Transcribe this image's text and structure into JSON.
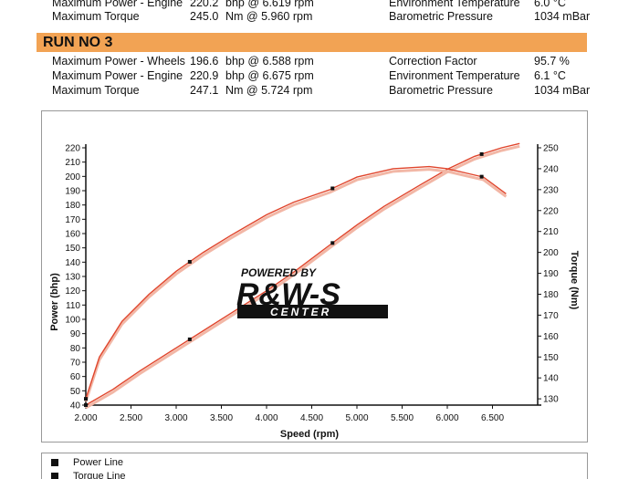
{
  "prev_run": {
    "lines": [
      {
        "label": "Maximum Power - Engine",
        "value": "220.2",
        "unit": "bhp @ 6.619 rpm",
        "env_label": "Environment Temperature",
        "env_value": "6.0 °C"
      },
      {
        "label": "Maximum Torque",
        "value": "245.0",
        "unit": "Nm @ 5.960 rpm",
        "env_label": "Barometric Pressure",
        "env_value": "1034 mBar"
      }
    ]
  },
  "run": {
    "title": "RUN NO 3",
    "lines": [
      {
        "label": "Maximum Power - Wheels",
        "value": "196.6",
        "unit": "bhp @ 6.588 rpm",
        "env_label": "Correction Factor",
        "env_value": "95.7 %"
      },
      {
        "label": "Maximum Power - Engine",
        "value": "220.9",
        "unit": "bhp @ 6.675 rpm",
        "env_label": "Environment Temperature",
        "env_value": "6.1 °C"
      },
      {
        "label": "Maximum Torque",
        "value": "247.1",
        "unit": "Nm @ 5.724 rpm",
        "env_label": "Barometric Pressure",
        "env_value": "1034 mBar"
      }
    ]
  },
  "watermark": {
    "line1": "POWERED BY",
    "line2": "R&W-S",
    "line3": "CENTER"
  },
  "legend": {
    "items": [
      {
        "label": "Power Line"
      },
      {
        "label": "Torque Line"
      }
    ]
  },
  "colors": {
    "curve": "#e0452c",
    "curve_faint": "#f2b7a6",
    "banner": "#f2a354",
    "marker": "#111111"
  },
  "chart_data": {
    "type": "line",
    "xlabel": "Speed (rpm)",
    "ylabel": "Power (bhp)",
    "y2label": "Torque (Nm)",
    "xlim": [
      2000,
      7000
    ],
    "ylim": [
      40,
      220
    ],
    "y2lim": [
      127,
      250
    ],
    "x_ticks": [
      2000,
      2500,
      3000,
      3500,
      4000,
      4500,
      5000,
      5500,
      6000,
      6500
    ],
    "x_tick_labels": [
      "2.000",
      "2.500",
      "3.000",
      "3.500",
      "4.000",
      "4.500",
      "5.000",
      "5.500",
      "6.000",
      "6.500"
    ],
    "y_ticks": [
      40,
      50,
      60,
      70,
      80,
      90,
      100,
      110,
      120,
      130,
      140,
      150,
      160,
      170,
      180,
      190,
      200,
      210,
      220
    ],
    "y2_ticks": [
      130,
      140,
      150,
      160,
      170,
      180,
      190,
      200,
      210,
      220,
      230,
      240,
      250
    ],
    "grid": false,
    "series": [
      {
        "name": "Power Line",
        "axis": "left",
        "x": [
          2000,
          2300,
          2600,
          3000,
          3300,
          3600,
          4000,
          4300,
          4700,
          5000,
          5300,
          5700,
          6000,
          6300,
          6600,
          6800
        ],
        "y": [
          40,
          51,
          64,
          80,
          92,
          104,
          120,
          133,
          152,
          166,
          179,
          194,
          205,
          214,
          220,
          223
        ]
      },
      {
        "name": "Torque Line",
        "axis": "right",
        "x": [
          2000,
          2150,
          2400,
          2700,
          3000,
          3300,
          3600,
          4000,
          4300,
          4700,
          5000,
          5400,
          5800,
          6000,
          6200,
          6400,
          6650
        ],
        "y": [
          130,
          150,
          167,
          180,
          191,
          200,
          208,
          218,
          224,
          230,
          236,
          240,
          241,
          240,
          238,
          236,
          228
        ]
      }
    ],
    "markers": [
      {
        "series": "Power Line",
        "x": [
          2000,
          3150,
          4730,
          6380
        ]
      },
      {
        "series": "Torque Line",
        "x": [
          2000,
          3150,
          4730,
          6380
        ]
      }
    ]
  }
}
